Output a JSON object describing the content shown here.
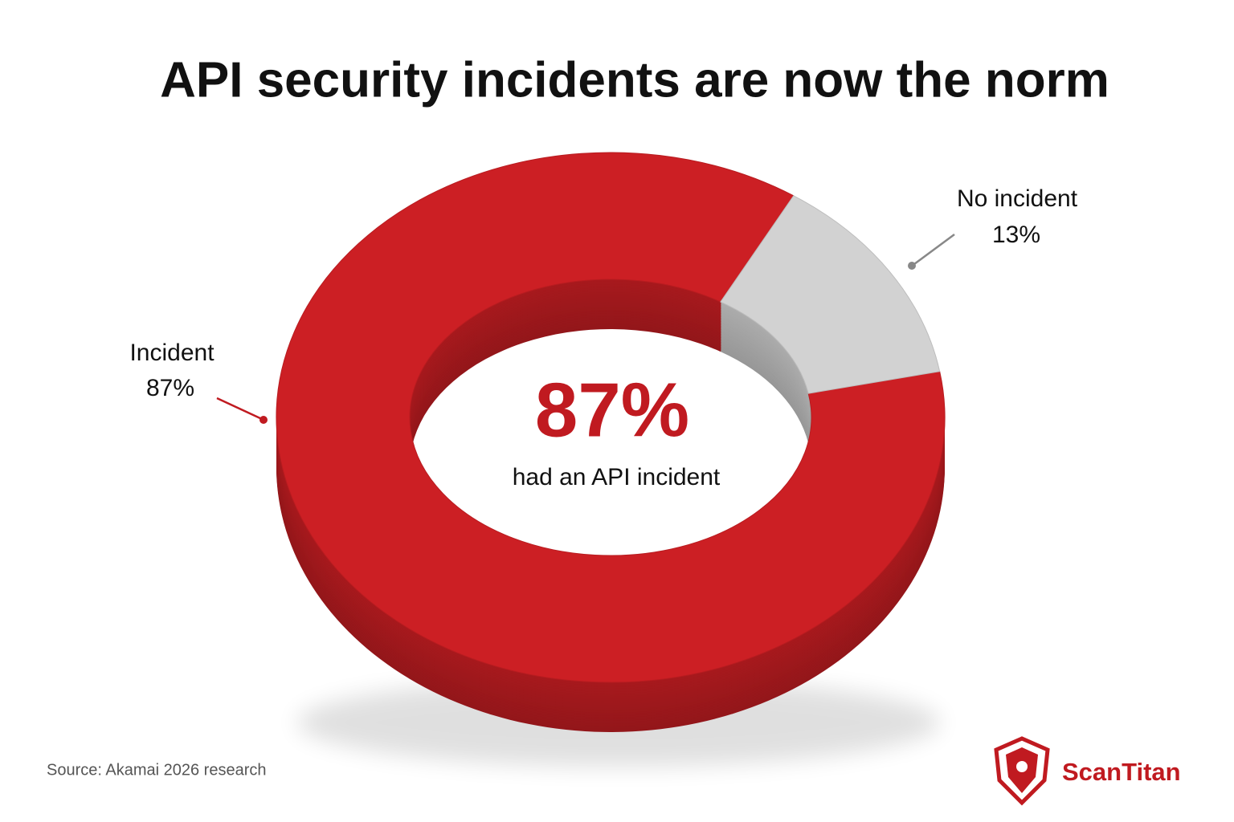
{
  "chart_data": {
    "type": "pie",
    "title": "API security incidents are now the norm",
    "categories": [
      "Incident",
      "No incident"
    ],
    "values": [
      87,
      13
    ],
    "value_labels": [
      "87%",
      "13%"
    ],
    "colors": [
      "#cc1f24",
      "#d2d2d2"
    ],
    "center_text": "had an API incident",
    "source": "Source: Akamai 2026 research",
    "brand": "ScanTitan"
  }
}
